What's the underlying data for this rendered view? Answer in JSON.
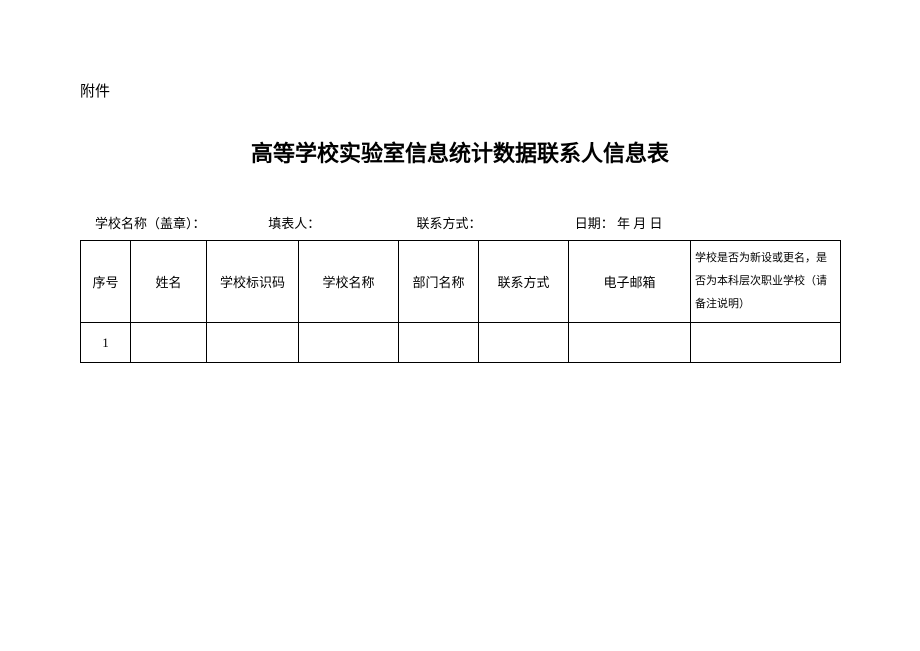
{
  "attachment_label": "附件",
  "title": "高等学校实验室信息统计数据联系人信息表",
  "info_line": {
    "school_name": "学校名称（盖章）：",
    "filler": "填表人：",
    "contact": "联系方式：",
    "date": "日期：  年  月  日"
  },
  "table": {
    "headers": {
      "col1": "序号",
      "col2": "姓名",
      "col3": "学校标识码",
      "col4": "学校名称",
      "col5": "部门名称",
      "col6": "联系方式",
      "col7": "电子邮箱",
      "col8": "学校是否为新设或更名，是否为本科层次职业学校（请备注说明）"
    },
    "rows": [
      {
        "seq": "1",
        "name": "",
        "school_code": "",
        "school_name": "",
        "dept": "",
        "contact": "",
        "email": "",
        "remark": ""
      }
    ]
  }
}
